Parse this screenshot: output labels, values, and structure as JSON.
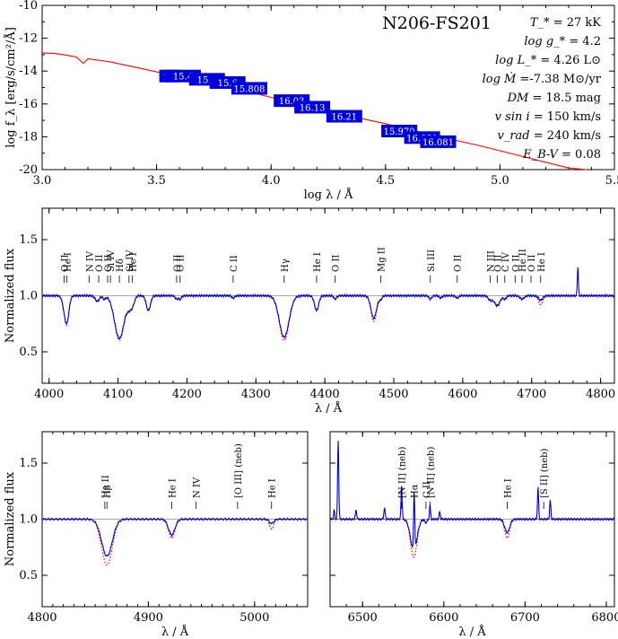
{
  "chart_data": [
    {
      "type": "line",
      "panel": "sed",
      "title": "N206-FS201",
      "xlabel": "log λ / Å",
      "ylabel": "log f_λ [erg/s/cm²/Å]",
      "xlim": [
        3.0,
        5.5
      ],
      "ylim": [
        -20,
        -10
      ],
      "xticks": [
        "3.0",
        "3.5",
        "4.0",
        "4.5",
        "5.0",
        "5.5"
      ],
      "yticks": [
        "-10",
        "-12",
        "-14",
        "-16",
        "-18",
        "-20"
      ],
      "grid": false,
      "parameters": [
        {
          "name": "T_*",
          "value": "= 27 kK"
        },
        {
          "name": "log g_*",
          "value": "=   4.2"
        },
        {
          "name": "log L_*",
          "value": "= 4.26 L⊙"
        },
        {
          "name": "log Ṁ",
          "value": "=-7.38 M⊙/yr"
        },
        {
          "name": "DM",
          "value": "= 18.5 mag"
        },
        {
          "name": "v sin i",
          "value": "= 150 km/s"
        },
        {
          "name": "v_rad",
          "value": "= 240 km/s"
        },
        {
          "name": "E_B-V",
          "value": "= 0.08"
        }
      ],
      "model_sed": {
        "color": "#ff0000",
        "x": [
          3.0,
          3.05,
          3.1,
          3.15,
          3.18,
          3.2,
          3.3,
          3.4,
          3.5,
          3.6,
          3.7,
          3.8,
          3.9,
          4.0,
          4.1,
          4.2,
          4.3,
          4.4,
          4.5,
          4.6,
          4.7,
          4.8,
          4.9,
          5.0,
          5.1,
          5.2,
          5.3,
          5.38
        ],
        "y": [
          -12.9,
          -12.95,
          -13.05,
          -13.15,
          -13.5,
          -13.25,
          -13.45,
          -13.75,
          -14.05,
          -14.35,
          -14.65,
          -14.95,
          -15.25,
          -15.6,
          -15.9,
          -16.25,
          -16.55,
          -16.9,
          -17.2,
          -17.55,
          -17.85,
          -18.2,
          -18.5,
          -18.85,
          -19.2,
          -19.55,
          -19.9,
          -20.0
        ]
      },
      "photometry": [
        {
          "label": "14",
          "x": 3.555,
          "y": -14.3
        },
        {
          "label": "15.4",
          "x": 3.615,
          "y": -14.3
        },
        {
          "label": "15.6",
          "x": 3.72,
          "y": -14.5
        },
        {
          "label": "15.6",
          "x": 3.81,
          "y": -14.7
        },
        {
          "label": "15.808",
          "x": 3.905,
          "y": -15.05
        },
        {
          "label": "16.03",
          "x": 4.09,
          "y": -15.8
        },
        {
          "label": "16.13",
          "x": 4.18,
          "y": -16.2
        },
        {
          "label": "16.21",
          "x": 4.32,
          "y": -16.75
        },
        {
          "label": "15.970",
          "x": 4.56,
          "y": -17.65
        },
        {
          "label": "16.081",
          "x": 4.66,
          "y": -18.05
        },
        {
          "label": "16.081",
          "x": 4.73,
          "y": -18.3
        }
      ]
    },
    {
      "type": "line",
      "panel": "blue",
      "xlabel": "λ / Å",
      "ylabel": "Normalized flux",
      "xlim": [
        3990,
        4820
      ],
      "ylim": [
        0.22,
        1.78
      ],
      "xticks": [
        4000,
        4100,
        4200,
        4300,
        4400,
        4500,
        4600,
        4700,
        4800
      ],
      "yticks": [
        "0.5",
        "1.0",
        "1.5"
      ],
      "continuum": 1.0,
      "series": [
        {
          "role": "observed",
          "color": "#0000cc",
          "style": "solid"
        },
        {
          "role": "model",
          "color": "#ff0000",
          "style": "dotted"
        }
      ],
      "lines": [
        {
          "wave": 4022,
          "obs": 0.92,
          "mod": 0.93,
          "w": 3
        },
        {
          "wave": 4026,
          "obs": 0.79,
          "mod": 0.77,
          "w": 3
        },
        {
          "wave": 4070,
          "obs": 0.95,
          "mod": 0.95,
          "w": 3
        },
        {
          "wave": 4080,
          "obs": 0.97,
          "mod": 0.97,
          "w": 2
        },
        {
          "wave": 4102,
          "obs": 0.62,
          "mod": 0.6,
          "w": 7
        },
        {
          "wave": 4116,
          "obs": 0.93,
          "mod": 0.93,
          "w": 3
        },
        {
          "wave": 4121,
          "obs": 0.92,
          "mod": 0.92,
          "w": 3
        },
        {
          "wave": 4144,
          "obs": 0.87,
          "mod": 0.86,
          "w": 3
        },
        {
          "wave": 4185,
          "obs": 0.97,
          "mod": 0.97,
          "w": 2
        },
        {
          "wave": 4190,
          "obs": 0.97,
          "mod": 0.97,
          "w": 2
        },
        {
          "wave": 4267,
          "obs": 0.98,
          "mod": 0.98,
          "w": 2
        },
        {
          "wave": 4341,
          "obs": 0.63,
          "mod": 0.6,
          "w": 7
        },
        {
          "wave": 4388,
          "obs": 0.87,
          "mod": 0.86,
          "w": 3
        },
        {
          "wave": 4415,
          "obs": 0.97,
          "mod": 0.97,
          "w": 2
        },
        {
          "wave": 4471,
          "obs": 0.8,
          "mod": 0.77,
          "w": 4
        },
        {
          "wave": 4481,
          "obs": 0.97,
          "mod": 0.97,
          "w": 2
        },
        {
          "wave": 4553,
          "obs": 0.97,
          "mod": 0.97,
          "w": 2
        },
        {
          "wave": 4568,
          "obs": 0.98,
          "mod": 0.98,
          "w": 2
        },
        {
          "wave": 4592,
          "obs": 0.98,
          "mod": 0.98,
          "w": 2
        },
        {
          "wave": 4640,
          "obs": 0.96,
          "mod": 0.96,
          "w": 3
        },
        {
          "wave": 4650,
          "obs": 0.91,
          "mod": 0.92,
          "w": 4
        },
        {
          "wave": 4661,
          "obs": 0.97,
          "mod": 0.97,
          "w": 2
        },
        {
          "wave": 4686,
          "obs": 0.97,
          "mod": 0.97,
          "w": 3
        },
        {
          "wave": 4713,
          "obs": 0.96,
          "mod": 0.92,
          "w": 3
        },
        {
          "wave": 4767,
          "obs": 1.26,
          "mod": 1.0,
          "w": 0.8
        }
      ],
      "labels": [
        {
          "text": "O II",
          "wave": 4022
        },
        {
          "text": "He I",
          "wave": 4026
        },
        {
          "text": "N IV",
          "wave": 4058
        },
        {
          "text": "O II",
          "wave": 4072
        },
        {
          "text": "O II",
          "wave": 4085
        },
        {
          "text": "Si IV",
          "wave": 4089
        },
        {
          "text": "Hδ",
          "wave": 4102
        },
        {
          "text": "Si IV",
          "wave": 4116
        },
        {
          "text": "He I",
          "wave": 4121
        },
        {
          "text": "O II",
          "wave": 4185
        },
        {
          "text": "O II",
          "wave": 4190
        },
        {
          "text": "C II",
          "wave": 4267
        },
        {
          "text": "Hγ",
          "wave": 4341
        },
        {
          "text": "He I",
          "wave": 4388
        },
        {
          "text": "O II",
          "wave": 4415
        },
        {
          "text": "Mg II",
          "wave": 4481
        },
        {
          "text": "Si III",
          "wave": 4553
        },
        {
          "text": "O II",
          "wave": 4592
        },
        {
          "text": "N III",
          "wave": 4640
        },
        {
          "text": "O II",
          "wave": 4650
        },
        {
          "text": "C IV",
          "wave": 4661
        },
        {
          "text": "O II",
          "wave": 4676
        },
        {
          "text": "He II",
          "wave": 4686
        },
        {
          "text": "O II",
          "wave": 4699
        },
        {
          "text": "He I",
          "wave": 4713
        }
      ]
    },
    {
      "type": "line",
      "panel": "hbeta",
      "xlabel": "λ / Å",
      "ylabel": "Normalized flux",
      "xlim": [
        4800,
        5050
      ],
      "ylim": [
        0.22,
        1.78
      ],
      "xticks": [
        4800,
        4900,
        5000
      ],
      "yticks": [
        "0.5",
        "1.0",
        "1.5"
      ],
      "continuum": 1.0,
      "series": [
        {
          "role": "observed",
          "color": "#0000cc",
          "style": "solid"
        },
        {
          "role": "model",
          "color": "#ff0000",
          "style": "dotted"
        }
      ],
      "lines": [
        {
          "wave": 4861,
          "obs": 0.67,
          "mod": 0.59,
          "w": 5
        },
        {
          "wave": 4922,
          "obs": 0.86,
          "mod": 0.83,
          "w": 3
        },
        {
          "wave": 5016,
          "obs": 0.96,
          "mod": 0.91,
          "w": 2
        }
      ],
      "labels": [
        {
          "text": "He II",
          "wave": 4859
        },
        {
          "text": "Hβ",
          "wave": 4861
        },
        {
          "text": "He I",
          "wave": 4922
        },
        {
          "text": "N IV",
          "wave": 4945
        },
        {
          "text": "[O III] (neb)",
          "wave": 4984
        },
        {
          "text": "He I",
          "wave": 5016
        }
      ]
    },
    {
      "type": "line",
      "panel": "halpha",
      "xlabel": "λ / Å",
      "xlim": [
        6460,
        6810
      ],
      "ylim": [
        0.22,
        1.78
      ],
      "xticks": [
        6500,
        6600,
        6700,
        6800
      ],
      "continuum": 1.0,
      "series": [
        {
          "role": "observed",
          "color": "#0000cc",
          "style": "solid"
        },
        {
          "role": "model",
          "color": "#ff0000",
          "style": "dotted"
        }
      ],
      "lines": [
        {
          "wave": 6470,
          "obs": 1.7,
          "mod": 1.0,
          "w": 0.7
        },
        {
          "wave": 6465,
          "obs": 1.08,
          "mod": 1.0,
          "w": 0.7
        },
        {
          "wave": 6492,
          "obs": 1.08,
          "mod": 1.0,
          "w": 0.8
        },
        {
          "wave": 6527,
          "obs": 1.1,
          "mod": 1.0,
          "w": 0.8
        },
        {
          "wave": 6548,
          "obs": 1.3,
          "mod": 1.0,
          "w": 0.7
        },
        {
          "wave": 6563,
          "obs": 0.72,
          "mod": 0.66,
          "w": 4
        },
        {
          "wave": 6563.5,
          "obs": 1.52,
          "mod": 1.0,
          "w": 0.7
        },
        {
          "wave": 6578,
          "obs": 0.97,
          "mod": 0.97,
          "w": 1.5
        },
        {
          "wave": 6583,
          "obs": 1.12,
          "mod": 1.0,
          "w": 0.7
        },
        {
          "wave": 6595,
          "obs": 1.06,
          "mod": 1.0,
          "w": 0.8
        },
        {
          "wave": 6678,
          "obs": 0.88,
          "mod": 0.83,
          "w": 3
        },
        {
          "wave": 6716,
          "obs": 1.28,
          "mod": 1.0,
          "w": 0.7
        },
        {
          "wave": 6731,
          "obs": 1.17,
          "mod": 1.0,
          "w": 0.7
        }
      ],
      "labels": [
        {
          "text": "[N II] (neb)",
          "wave": 6548
        },
        {
          "text": "Hα",
          "wave": 6563
        },
        {
          "text": "C II",
          "wave": 6578
        },
        {
          "text": "[N II] (neb)",
          "wave": 6583
        },
        {
          "text": "He I",
          "wave": 6678
        },
        {
          "text": "[S II] (neb)",
          "wave": 6723
        }
      ]
    }
  ]
}
